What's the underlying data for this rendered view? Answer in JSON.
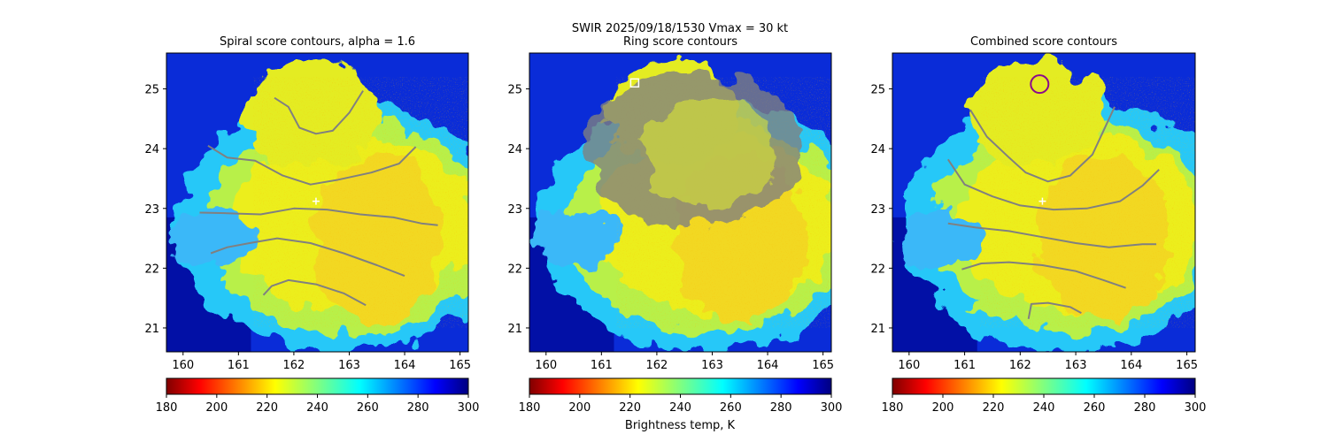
{
  "figure": {
    "suptitle_line1": "SWIR  2025/09/18/1530    Vmax = 30 kt",
    "colorbar_label": "Brightness temp, K"
  },
  "colors": {
    "contour": "#808080",
    "combined_marker": "#8b0a8b",
    "ring_marker": "#ffffff"
  },
  "chart_data": [
    {
      "type": "heatmap",
      "title": "Spiral score contours, alpha =  1.6",
      "xlim": [
        159.7,
        165.15
      ],
      "ylim": [
        20.6,
        25.6
      ],
      "x_ticks": [
        "160",
        "161",
        "162",
        "163",
        "164",
        "165"
      ],
      "y_ticks": [
        "21",
        "22",
        "23",
        "24",
        "25"
      ],
      "colorbar": {
        "min": 180,
        "max": 300,
        "ticks": [
          "180",
          "200",
          "220",
          "240",
          "260",
          "280",
          "300"
        ],
        "colormap": "jet_r"
      },
      "center_marker": {
        "lon": 162.4,
        "lat": 23.12
      },
      "contours": [
        {
          "lon": [
            161.65,
            161.9,
            162.1,
            162.4,
            162.7,
            163.0,
            163.25
          ],
          "lat": [
            24.85,
            24.7,
            24.35,
            24.25,
            24.3,
            24.6,
            24.97
          ]
        },
        {
          "lon": [
            160.45,
            160.8,
            161.3,
            161.8,
            162.3,
            162.8,
            163.4,
            163.9,
            164.2
          ],
          "lat": [
            24.05,
            23.85,
            23.8,
            23.55,
            23.4,
            23.48,
            23.6,
            23.75,
            24.03
          ]
        },
        {
          "lon": [
            160.3,
            160.8,
            161.4,
            162.0,
            162.6,
            163.2,
            163.8,
            164.3,
            164.6
          ],
          "lat": [
            22.93,
            22.92,
            22.9,
            23.0,
            22.98,
            22.9,
            22.85,
            22.75,
            22.72
          ]
        },
        {
          "lon": [
            160.5,
            160.8,
            161.2,
            161.7,
            162.3,
            162.9,
            163.5,
            164.0
          ],
          "lat": [
            22.25,
            22.35,
            22.42,
            22.5,
            22.42,
            22.25,
            22.05,
            21.87
          ]
        },
        {
          "lon": [
            161.45,
            161.6,
            161.9,
            162.4,
            162.9,
            163.3
          ],
          "lat": [
            21.55,
            21.7,
            21.8,
            21.73,
            21.58,
            21.38
          ]
        }
      ]
    },
    {
      "type": "heatmap",
      "title": "Ring score contours",
      "xlim": [
        159.7,
        165.15
      ],
      "ylim": [
        20.6,
        25.6
      ],
      "x_ticks": [
        "160",
        "161",
        "162",
        "163",
        "164",
        "165"
      ],
      "y_ticks": [
        "21",
        "22",
        "23",
        "24",
        "25"
      ],
      "colorbar": {
        "min": 180,
        "max": 300,
        "ticks": [
          "180",
          "200",
          "220",
          "240",
          "260",
          "280",
          "300"
        ],
        "colormap": "jet_r"
      },
      "ring_region": {
        "center_lon": 162.65,
        "center_lat": 24.0,
        "radius_lon": 1.95,
        "radius_lat": 1.3
      },
      "square_marker": {
        "lon": 161.6,
        "lat": 25.1
      }
    },
    {
      "type": "heatmap",
      "title": "Combined score contours",
      "xlim": [
        159.7,
        165.15
      ],
      "ylim": [
        20.6,
        25.6
      ],
      "x_ticks": [
        "160",
        "161",
        "162",
        "163",
        "164",
        "165"
      ],
      "y_ticks": [
        "21",
        "22",
        "23",
        "24",
        "25"
      ],
      "colorbar": {
        "min": 180,
        "max": 300,
        "ticks": [
          "180",
          "200",
          "220",
          "240",
          "260",
          "280",
          "300"
        ],
        "colormap": "jet_r"
      },
      "center_marker": {
        "lon": 162.4,
        "lat": 23.12
      },
      "circle_marker": {
        "lon": 162.35,
        "lat": 25.08
      },
      "contours": [
        {
          "lon": [
            161.1,
            161.4,
            161.8,
            162.1,
            162.5,
            162.9,
            163.3,
            163.7
          ],
          "lat": [
            24.65,
            24.2,
            23.85,
            23.6,
            23.45,
            23.55,
            23.9,
            24.7
          ]
        },
        {
          "lon": [
            160.7,
            161.0,
            161.5,
            162.0,
            162.6,
            163.2,
            163.8,
            164.2,
            164.5
          ],
          "lat": [
            23.82,
            23.4,
            23.2,
            23.05,
            22.98,
            23.0,
            23.12,
            23.38,
            23.65
          ]
        },
        {
          "lon": [
            160.7,
            161.2,
            161.8,
            162.4,
            163.0,
            163.6,
            164.2,
            164.45
          ],
          "lat": [
            22.75,
            22.68,
            22.62,
            22.52,
            22.42,
            22.35,
            22.4,
            22.4
          ]
        },
        {
          "lon": [
            160.95,
            161.3,
            161.8,
            162.4,
            163.0,
            163.5,
            163.9
          ],
          "lat": [
            21.98,
            22.08,
            22.1,
            22.05,
            21.95,
            21.8,
            21.67
          ]
        },
        {
          "lon": [
            162.15,
            162.2,
            162.5,
            162.9,
            163.1
          ],
          "lat": [
            21.15,
            21.4,
            21.42,
            21.35,
            21.25
          ]
        }
      ]
    }
  ]
}
